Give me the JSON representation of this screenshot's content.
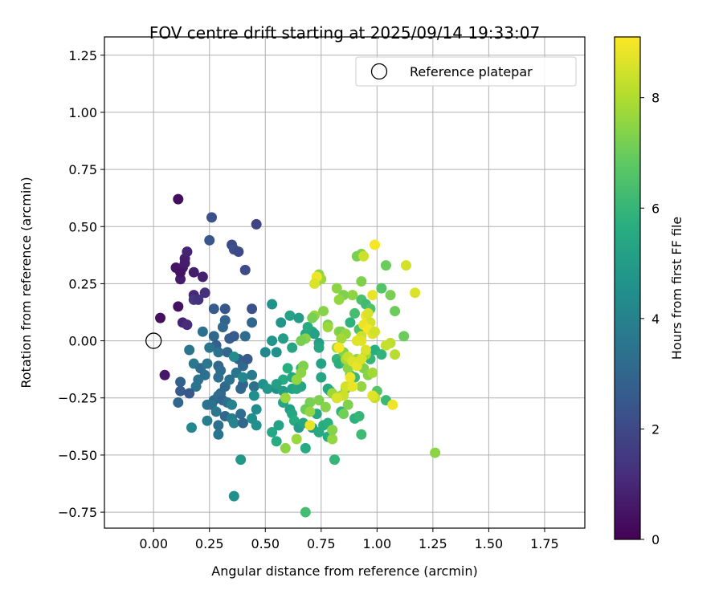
{
  "chart_data": {
    "type": "scatter",
    "title": "FOV centre drift starting at 2025/09/14 19:33:07",
    "xlabel": "Angular distance from reference (arcmin)",
    "ylabel": "Rotation from reference (arcmin)",
    "xlim": [
      -0.22,
      1.93
    ],
    "ylim": [
      -0.82,
      1.33
    ],
    "xticks": [
      "0.00",
      "0.25",
      "0.50",
      "0.75",
      "1.00",
      "1.25",
      "1.50",
      "1.75"
    ],
    "yticks": [
      "-0.75",
      "-0.50",
      "-0.25",
      "0.00",
      "0.25",
      "0.50",
      "0.75",
      "1.00",
      "1.25"
    ],
    "grid": true,
    "legend": {
      "position": "top-right",
      "entries": [
        "Reference platepar"
      ]
    },
    "colorbar": {
      "label": "Hours from first FF file",
      "min": 0,
      "max": 9.1,
      "ticks": [
        "0",
        "2",
        "4",
        "6",
        "8"
      ],
      "colormap": "viridis"
    },
    "reference_point": {
      "x": 0.0,
      "y": 0.0,
      "label": "Reference platepar"
    },
    "points": [
      {
        "x": 0.11,
        "y": 0.62,
        "h": 0.3
      },
      {
        "x": 0.1,
        "y": 0.32,
        "h": 0.5
      },
      {
        "x": 0.12,
        "y": 0.27,
        "h": 0.7
      },
      {
        "x": 0.13,
        "y": 0.32,
        "h": 0.6
      },
      {
        "x": 0.14,
        "y": 0.36,
        "h": 0.8
      },
      {
        "x": 0.15,
        "y": 0.39,
        "h": 0.9
      },
      {
        "x": 0.14,
        "y": 0.34,
        "h": 0.7
      },
      {
        "x": 0.12,
        "y": 0.3,
        "h": 0.5
      },
      {
        "x": 0.11,
        "y": 0.15,
        "h": 0.4
      },
      {
        "x": 0.03,
        "y": 0.1,
        "h": 0.4
      },
      {
        "x": 0.05,
        "y": -0.15,
        "h": 0.6
      },
      {
        "x": 0.13,
        "y": 0.08,
        "h": 0.9
      },
      {
        "x": 0.15,
        "y": 0.07,
        "h": 1.1
      },
      {
        "x": 0.18,
        "y": 0.3,
        "h": 0.7
      },
      {
        "x": 0.22,
        "y": 0.28,
        "h": 0.8
      },
      {
        "x": 0.18,
        "y": 0.2,
        "h": 1.0
      },
      {
        "x": 0.18,
        "y": 0.18,
        "h": 1.5
      },
      {
        "x": 0.2,
        "y": 0.18,
        "h": 1.3
      },
      {
        "x": 0.23,
        "y": 0.21,
        "h": 1.2
      },
      {
        "x": 0.26,
        "y": 0.54,
        "h": 2.2
      },
      {
        "x": 0.25,
        "y": 0.44,
        "h": 2.5
      },
      {
        "x": 0.35,
        "y": 0.42,
        "h": 2.0
      },
      {
        "x": 0.36,
        "y": 0.4,
        "h": 2.2
      },
      {
        "x": 0.38,
        "y": 0.39,
        "h": 2.0
      },
      {
        "x": 0.46,
        "y": 0.51,
        "h": 1.8
      },
      {
        "x": 0.41,
        "y": 0.31,
        "h": 2.1
      },
      {
        "x": 0.44,
        "y": 0.14,
        "h": 2.2
      },
      {
        "x": 0.27,
        "y": 0.14,
        "h": 2.6
      },
      {
        "x": 0.32,
        "y": 0.14,
        "h": 2.4
      },
      {
        "x": 0.32,
        "y": 0.09,
        "h": 2.9
      },
      {
        "x": 0.22,
        "y": 0.04,
        "h": 3.3
      },
      {
        "x": 0.27,
        "y": 0.02,
        "h": 3.0
      },
      {
        "x": 0.28,
        "y": -0.02,
        "h": 2.8
      },
      {
        "x": 0.31,
        "y": 0.06,
        "h": 3.1
      },
      {
        "x": 0.34,
        "y": 0.01,
        "h": 2.7
      },
      {
        "x": 0.36,
        "y": 0.02,
        "h": 2.6
      },
      {
        "x": 0.41,
        "y": 0.02,
        "h": 3.2
      },
      {
        "x": 0.44,
        "y": 0.08,
        "h": 3.0
      },
      {
        "x": 0.25,
        "y": -0.03,
        "h": 3.5
      },
      {
        "x": 0.29,
        "y": -0.05,
        "h": 3.4
      },
      {
        "x": 0.33,
        "y": -0.05,
        "h": 3.0
      },
      {
        "x": 0.38,
        "y": -0.08,
        "h": 2.8
      },
      {
        "x": 0.4,
        "y": -0.11,
        "h": 3.1
      },
      {
        "x": 0.42,
        "y": -0.08,
        "h": 2.6
      },
      {
        "x": 0.16,
        "y": -0.04,
        "h": 3.5
      },
      {
        "x": 0.18,
        "y": -0.1,
        "h": 3.6
      },
      {
        "x": 0.21,
        "y": -0.12,
        "h": 3.2
      },
      {
        "x": 0.24,
        "y": -0.1,
        "h": 3.6
      },
      {
        "x": 0.23,
        "y": -0.15,
        "h": 3.3
      },
      {
        "x": 0.2,
        "y": -0.17,
        "h": 3.4
      },
      {
        "x": 0.19,
        "y": -0.2,
        "h": 3.5
      },
      {
        "x": 0.29,
        "y": -0.11,
        "h": 3.0
      },
      {
        "x": 0.3,
        "y": -0.13,
        "h": 3.2
      },
      {
        "x": 0.29,
        "y": -0.16,
        "h": 3.3
      },
      {
        "x": 0.32,
        "y": -0.2,
        "h": 3.1
      },
      {
        "x": 0.3,
        "y": -0.23,
        "h": 3.0
      },
      {
        "x": 0.34,
        "y": -0.17,
        "h": 3.4
      },
      {
        "x": 0.37,
        "y": -0.14,
        "h": 3.5
      },
      {
        "x": 0.39,
        "y": -0.21,
        "h": 3.0
      },
      {
        "x": 0.4,
        "y": -0.19,
        "h": 2.9
      },
      {
        "x": 0.44,
        "y": -0.15,
        "h": 3.7
      },
      {
        "x": 0.45,
        "y": -0.2,
        "h": 3.4
      },
      {
        "x": 0.12,
        "y": -0.22,
        "h": 2.6
      },
      {
        "x": 0.11,
        "y": -0.27,
        "h": 3.0
      },
      {
        "x": 0.16,
        "y": -0.23,
        "h": 2.5
      },
      {
        "x": 0.12,
        "y": -0.18,
        "h": 2.8
      },
      {
        "x": 0.27,
        "y": -0.26,
        "h": 3.0
      },
      {
        "x": 0.29,
        "y": -0.24,
        "h": 3.2
      },
      {
        "x": 0.31,
        "y": -0.26,
        "h": 2.9
      },
      {
        "x": 0.33,
        "y": -0.27,
        "h": 3.3
      },
      {
        "x": 0.24,
        "y": -0.28,
        "h": 3.5
      },
      {
        "x": 0.26,
        "y": -0.28,
        "h": 3.4
      },
      {
        "x": 0.28,
        "y": -0.31,
        "h": 3.6
      },
      {
        "x": 0.24,
        "y": -0.35,
        "h": 3.8
      },
      {
        "x": 0.29,
        "y": -0.37,
        "h": 3.3
      },
      {
        "x": 0.29,
        "y": -0.41,
        "h": 3.5
      },
      {
        "x": 0.17,
        "y": -0.38,
        "h": 4.2
      },
      {
        "x": 0.32,
        "y": -0.33,
        "h": 3.0
      },
      {
        "x": 0.35,
        "y": -0.34,
        "h": 3.8
      },
      {
        "x": 0.35,
        "y": -0.28,
        "h": 4.0
      },
      {
        "x": 0.36,
        "y": -0.36,
        "h": 4.1
      },
      {
        "x": 0.39,
        "y": -0.32,
        "h": 3.2
      },
      {
        "x": 0.4,
        "y": -0.36,
        "h": 3.0
      },
      {
        "x": 0.44,
        "y": -0.34,
        "h": 4.5
      },
      {
        "x": 0.46,
        "y": -0.37,
        "h": 4.5
      },
      {
        "x": 0.46,
        "y": -0.3,
        "h": 4.4
      },
      {
        "x": 0.39,
        "y": -0.52,
        "h": 4.8
      },
      {
        "x": 0.36,
        "y": -0.68,
        "h": 4.6
      },
      {
        "x": 0.36,
        "y": -0.07,
        "h": 4.4
      },
      {
        "x": 0.4,
        "y": -0.16,
        "h": 4.2
      },
      {
        "x": 0.45,
        "y": -0.24,
        "h": 4.5
      },
      {
        "x": 0.5,
        "y": -0.05,
        "h": 4.2
      },
      {
        "x": 0.49,
        "y": -0.19,
        "h": 4.6
      },
      {
        "x": 0.51,
        "y": -0.21,
        "h": 4.8
      },
      {
        "x": 0.53,
        "y": 0.16,
        "h": 4.6
      },
      {
        "x": 0.53,
        "y": 0.0,
        "h": 4.7
      },
      {
        "x": 0.55,
        "y": -0.05,
        "h": 4.5
      },
      {
        "x": 0.55,
        "y": -0.21,
        "h": 4.6
      },
      {
        "x": 0.57,
        "y": 0.08,
        "h": 4.7
      },
      {
        "x": 0.58,
        "y": 0.01,
        "h": 5.0
      },
      {
        "x": 0.61,
        "y": 0.11,
        "h": 5.2
      },
      {
        "x": 0.62,
        "y": -0.03,
        "h": 5.3
      },
      {
        "x": 0.65,
        "y": 0.1,
        "h": 5.0
      },
      {
        "x": 0.68,
        "y": 0.03,
        "h": 5.4
      },
      {
        "x": 0.69,
        "y": 0.06,
        "h": 5.6
      },
      {
        "x": 0.71,
        "y": 0.04,
        "h": 5.5
      },
      {
        "x": 0.72,
        "y": 0.03,
        "h": 5.2
      },
      {
        "x": 0.74,
        "y": -0.01,
        "h": 5.1
      },
      {
        "x": 0.74,
        "y": -0.03,
        "h": 5.3
      },
      {
        "x": 0.6,
        "y": -0.12,
        "h": 5.7
      },
      {
        "x": 0.62,
        "y": -0.16,
        "h": 5.4
      },
      {
        "x": 0.64,
        "y": -0.17,
        "h": 5.8
      },
      {
        "x": 0.66,
        "y": -0.12,
        "h": 6.0
      },
      {
        "x": 0.58,
        "y": -0.17,
        "h": 5.5
      },
      {
        "x": 0.55,
        "y": -0.19,
        "h": 5.1
      },
      {
        "x": 0.58,
        "y": -0.22,
        "h": 5.0
      },
      {
        "x": 0.62,
        "y": -0.21,
        "h": 5.2
      },
      {
        "x": 0.64,
        "y": -0.21,
        "h": 5.4
      },
      {
        "x": 0.66,
        "y": -0.2,
        "h": 5.3
      },
      {
        "x": 0.58,
        "y": -0.27,
        "h": 5.3
      },
      {
        "x": 0.53,
        "y": -0.4,
        "h": 5.4
      },
      {
        "x": 0.56,
        "y": -0.37,
        "h": 5.2
      },
      {
        "x": 0.55,
        "y": -0.44,
        "h": 5.6
      },
      {
        "x": 0.61,
        "y": -0.3,
        "h": 5.1
      },
      {
        "x": 0.62,
        "y": -0.32,
        "h": 5.4
      },
      {
        "x": 0.63,
        "y": -0.35,
        "h": 5.6
      },
      {
        "x": 0.65,
        "y": -0.38,
        "h": 5.0
      },
      {
        "x": 0.67,
        "y": -0.36,
        "h": 5.3
      },
      {
        "x": 0.68,
        "y": -0.47,
        "h": 5.5
      },
      {
        "x": 0.68,
        "y": -0.75,
        "h": 6.3
      },
      {
        "x": 0.71,
        "y": -0.38,
        "h": 5.0
      },
      {
        "x": 0.74,
        "y": -0.4,
        "h": 5.5
      },
      {
        "x": 0.78,
        "y": -0.42,
        "h": 5.6
      },
      {
        "x": 0.73,
        "y": -0.32,
        "h": 5.4
      },
      {
        "x": 0.76,
        "y": -0.37,
        "h": 5.6
      },
      {
        "x": 0.78,
        "y": -0.36,
        "h": 5.7
      },
      {
        "x": 0.75,
        "y": -0.1,
        "h": 5.2
      },
      {
        "x": 0.75,
        "y": -0.16,
        "h": 5.3
      },
      {
        "x": 0.78,
        "y": -0.21,
        "h": 5.5
      },
      {
        "x": 0.79,
        "y": -0.22,
        "h": 5.4
      },
      {
        "x": 0.81,
        "y": -0.52,
        "h": 6.0
      },
      {
        "x": 0.82,
        "y": -0.25,
        "h": 5.5
      },
      {
        "x": 0.84,
        "y": -0.31,
        "h": 5.8
      },
      {
        "x": 0.82,
        "y": -0.08,
        "h": 6.0
      },
      {
        "x": 0.83,
        "y": -0.1,
        "h": 5.7
      },
      {
        "x": 0.88,
        "y": 0.08,
        "h": 5.8
      },
      {
        "x": 0.9,
        "y": 0.12,
        "h": 6.3
      },
      {
        "x": 0.92,
        "y": 0.05,
        "h": 6.5
      },
      {
        "x": 0.93,
        "y": 0.18,
        "h": 6.4
      },
      {
        "x": 0.95,
        "y": 0.16,
        "h": 6.2
      },
      {
        "x": 0.97,
        "y": 0.14,
        "h": 6.5
      },
      {
        "x": 0.86,
        "y": -0.1,
        "h": 6.2
      },
      {
        "x": 0.88,
        "y": -0.15,
        "h": 6.4
      },
      {
        "x": 0.9,
        "y": -0.16,
        "h": 6.1
      },
      {
        "x": 0.9,
        "y": -0.34,
        "h": 5.8
      },
      {
        "x": 0.92,
        "y": -0.33,
        "h": 6.0
      },
      {
        "x": 0.93,
        "y": -0.41,
        "h": 6.2
      },
      {
        "x": 0.97,
        "y": -0.08,
        "h": 6.0
      },
      {
        "x": 0.99,
        "y": -0.04,
        "h": 5.7
      },
      {
        "x": 1.0,
        "y": -0.22,
        "h": 6.6
      },
      {
        "x": 1.02,
        "y": -0.06,
        "h": 5.9
      },
      {
        "x": 1.04,
        "y": -0.26,
        "h": 6.1
      },
      {
        "x": 1.02,
        "y": 0.23,
        "h": 6.6
      },
      {
        "x": 1.04,
        "y": 0.33,
        "h": 7.0
      },
      {
        "x": 1.06,
        "y": 0.2,
        "h": 7.2
      },
      {
        "x": 1.08,
        "y": 0.13,
        "h": 7.0
      },
      {
        "x": 1.12,
        "y": 0.02,
        "h": 7.0
      },
      {
        "x": 0.93,
        "y": 0.26,
        "h": 7.3
      },
      {
        "x": 0.89,
        "y": 0.2,
        "h": 7.5
      },
      {
        "x": 0.85,
        "y": 0.2,
        "h": 7.3
      },
      {
        "x": 0.82,
        "y": 0.23,
        "h": 7.5
      },
      {
        "x": 0.83,
        "y": 0.18,
        "h": 7.6
      },
      {
        "x": 0.93,
        "y": 0.38,
        "h": 7.4
      },
      {
        "x": 0.91,
        "y": 0.37,
        "h": 7.2
      },
      {
        "x": 0.74,
        "y": 0.29,
        "h": 7.5
      },
      {
        "x": 0.73,
        "y": 0.26,
        "h": 7.8
      },
      {
        "x": 0.75,
        "y": 0.27,
        "h": 7.7
      },
      {
        "x": 0.76,
        "y": 0.13,
        "h": 7.4
      },
      {
        "x": 0.72,
        "y": 0.11,
        "h": 7.6
      },
      {
        "x": 0.71,
        "y": 0.1,
        "h": 7.2
      },
      {
        "x": 0.78,
        "y": 0.07,
        "h": 7.2
      },
      {
        "x": 0.78,
        "y": 0.06,
        "h": 7.7
      },
      {
        "x": 0.83,
        "y": 0.04,
        "h": 7.5
      },
      {
        "x": 0.84,
        "y": 0.04,
        "h": 7.2
      },
      {
        "x": 0.86,
        "y": 0.03,
        "h": 7.6
      },
      {
        "x": 0.84,
        "y": 0.01,
        "h": 7.8
      },
      {
        "x": 0.68,
        "y": 0.01,
        "h": 7.4
      },
      {
        "x": 0.66,
        "y": 0.0,
        "h": 7.2
      },
      {
        "x": 0.82,
        "y": -0.03,
        "h": 7.8
      },
      {
        "x": 0.85,
        "y": -0.05,
        "h": 7.3
      },
      {
        "x": 0.87,
        "y": -0.12,
        "h": 7.5
      },
      {
        "x": 0.86,
        "y": -0.08,
        "h": 7.9
      },
      {
        "x": 0.91,
        "y": -0.08,
        "h": 7.6
      },
      {
        "x": 0.95,
        "y": -0.06,
        "h": 7.8
      },
      {
        "x": 0.94,
        "y": -0.12,
        "h": 7.3
      },
      {
        "x": 0.96,
        "y": -0.15,
        "h": 7.4
      },
      {
        "x": 0.98,
        "y": -0.14,
        "h": 7.8
      },
      {
        "x": 0.93,
        "y": -0.2,
        "h": 7.6
      },
      {
        "x": 0.86,
        "y": -0.21,
        "h": 7.2
      },
      {
        "x": 0.84,
        "y": -0.24,
        "h": 7.5
      },
      {
        "x": 0.87,
        "y": -0.28,
        "h": 7.3
      },
      {
        "x": 0.85,
        "y": -0.32,
        "h": 7.1
      },
      {
        "x": 0.8,
        "y": -0.23,
        "h": 7.7
      },
      {
        "x": 0.77,
        "y": -0.29,
        "h": 7.4
      },
      {
        "x": 0.74,
        "y": -0.26,
        "h": 7.3
      },
      {
        "x": 0.7,
        "y": -0.27,
        "h": 7.2
      },
      {
        "x": 0.68,
        "y": -0.3,
        "h": 7.0
      },
      {
        "x": 0.7,
        "y": -0.31,
        "h": 7.6
      },
      {
        "x": 0.67,
        "y": -0.11,
        "h": 7.3
      },
      {
        "x": 0.66,
        "y": -0.14,
        "h": 7.5
      },
      {
        "x": 0.64,
        "y": -0.17,
        "h": 7.6
      },
      {
        "x": 0.64,
        "y": -0.43,
        "h": 7.7
      },
      {
        "x": 0.59,
        "y": -0.25,
        "h": 7.7
      },
      {
        "x": 0.59,
        "y": -0.47,
        "h": 7.5
      },
      {
        "x": 0.8,
        "y": -0.43,
        "h": 7.6
      },
      {
        "x": 0.8,
        "y": -0.39,
        "h": 7.4
      },
      {
        "x": 1.26,
        "y": -0.49,
        "h": 7.5
      },
      {
        "x": 1.08,
        "y": -0.06,
        "h": 8.1
      },
      {
        "x": 1.06,
        "y": -0.01,
        "h": 8.2
      },
      {
        "x": 1.04,
        "y": -0.02,
        "h": 8.3
      },
      {
        "x": 1.13,
        "y": 0.33,
        "h": 8.5
      },
      {
        "x": 1.17,
        "y": 0.21,
        "h": 8.6
      },
      {
        "x": 0.99,
        "y": 0.42,
        "h": 9.0
      },
      {
        "x": 0.98,
        "y": 0.2,
        "h": 8.8
      },
      {
        "x": 0.94,
        "y": 0.37,
        "h": 8.4
      },
      {
        "x": 0.95,
        "y": 0.11,
        "h": 8.9
      },
      {
        "x": 0.96,
        "y": 0.12,
        "h": 8.6
      },
      {
        "x": 0.97,
        "y": 0.08,
        "h": 8.5
      },
      {
        "x": 0.94,
        "y": 0.07,
        "h": 8.8
      },
      {
        "x": 0.96,
        "y": 0.05,
        "h": 9.0
      },
      {
        "x": 0.98,
        "y": 0.03,
        "h": 8.7
      },
      {
        "x": 0.99,
        "y": 0.04,
        "h": 8.5
      },
      {
        "x": 0.93,
        "y": 0.02,
        "h": 8.4
      },
      {
        "x": 0.91,
        "y": 0.0,
        "h": 8.7
      },
      {
        "x": 0.83,
        "y": -0.03,
        "h": 9.0
      },
      {
        "x": 0.87,
        "y": -0.07,
        "h": 8.3
      },
      {
        "x": 0.89,
        "y": -0.09,
        "h": 8.6
      },
      {
        "x": 0.91,
        "y": -0.11,
        "h": 8.8
      },
      {
        "x": 0.93,
        "y": -0.08,
        "h": 8.6
      },
      {
        "x": 0.88,
        "y": -0.16,
        "h": 8.9
      },
      {
        "x": 0.86,
        "y": -0.2,
        "h": 8.5
      },
      {
        "x": 0.89,
        "y": -0.2,
        "h": 8.8
      },
      {
        "x": 0.85,
        "y": -0.24,
        "h": 8.4
      },
      {
        "x": 0.82,
        "y": -0.25,
        "h": 8.6
      },
      {
        "x": 0.99,
        "y": -0.25,
        "h": 8.3
      },
      {
        "x": 0.98,
        "y": -0.24,
        "h": 8.7
      },
      {
        "x": 1.07,
        "y": -0.28,
        "h": 8.9
      },
      {
        "x": 0.73,
        "y": 0.28,
        "h": 8.9
      },
      {
        "x": 0.72,
        "y": 0.25,
        "h": 8.6
      },
      {
        "x": 0.7,
        "y": -0.37,
        "h": 8.8
      },
      {
        "x": 0.93,
        "y": 0.0,
        "h": 8.7
      },
      {
        "x": 0.95,
        "y": -0.04,
        "h": 8.6
      }
    ]
  }
}
